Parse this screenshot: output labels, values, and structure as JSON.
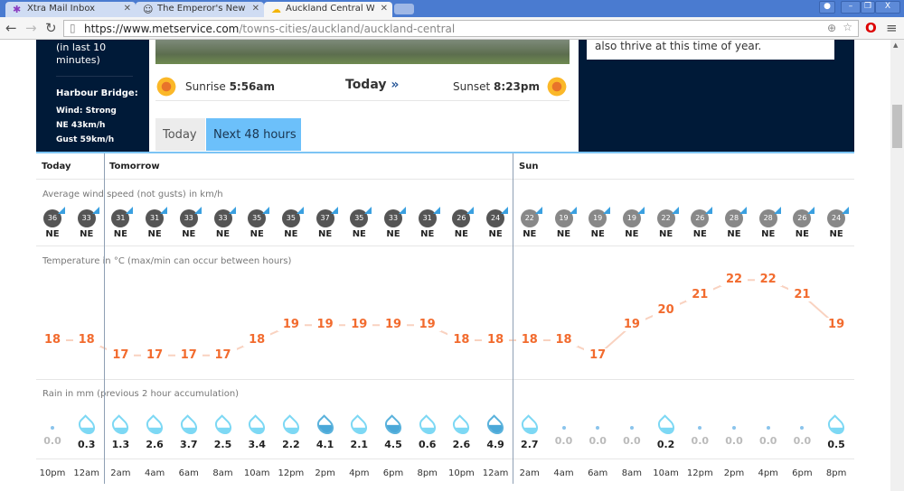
{
  "browser": {
    "tabs": [
      {
        "title": "Xtra Mail Inbox",
        "icon": "asterisk-icon"
      },
      {
        "title": "The Emperor's New Clo",
        "icon": "emoji-icon"
      },
      {
        "title": "Auckland Central Weath",
        "icon": "cloud-sun-icon",
        "active": true
      }
    ],
    "url_host": "https://www.metservice.com",
    "url_path": "/towns-cities/auckland/auckland-central"
  },
  "left_panel": {
    "note": "(in last 10 minutes)",
    "title": "Harbour Bridge:",
    "lines": [
      "Wind: Strong",
      "NE 43km/h",
      "Gust 59km/h"
    ]
  },
  "right_panel": {
    "text": "also thrive at this time of year."
  },
  "sun": {
    "sunrise_label": "Sunrise",
    "sunrise": "5:56am",
    "today": "Today",
    "sunset_label": "Sunset",
    "sunset": "8:23pm"
  },
  "view_tabs": [
    {
      "label": "Today"
    },
    {
      "label": "Next 48 hours",
      "active": true
    }
  ],
  "days": [
    "Today",
    "Tomorrow",
    "Sun"
  ],
  "wind_label": "Average wind speed (not gusts) in km/h",
  "temp_label": "Temperature in °C (max/min can occur between hours)",
  "rain_label": "Rain in mm (previous 2 hour accumulation)",
  "colors": {
    "temp": "#f26b2e",
    "accent": "#7cc4f4",
    "panel": "#001a38"
  },
  "times": [
    "10pm",
    "12am",
    "2am",
    "4am",
    "6am",
    "8am",
    "10am",
    "12pm",
    "2pm",
    "4pm",
    "6pm",
    "8pm",
    "10pm",
    "12am",
    "2am",
    "4am",
    "6am",
    "8am",
    "10am",
    "12pm",
    "2pm",
    "4pm",
    "6pm",
    "8pm"
  ],
  "wind_speeds": [
    36,
    33,
    31,
    31,
    33,
    33,
    35,
    35,
    37,
    35,
    33,
    31,
    26,
    24,
    22,
    19,
    19,
    19,
    22,
    26,
    28,
    28,
    26,
    24
  ],
  "wind_dirs": [
    "NE",
    "NE",
    "NE",
    "NE",
    "NE",
    "NE",
    "NE",
    "NE",
    "NE",
    "NE",
    "NE",
    "NE",
    "NE",
    "NE",
    "NE",
    "NE",
    "NE",
    "NE",
    "NE",
    "NE",
    "NE",
    "NE",
    "NE",
    "NE"
  ],
  "temps": [
    18,
    18,
    17,
    17,
    17,
    17,
    18,
    19,
    19,
    19,
    19,
    19,
    18,
    18,
    18,
    18,
    17,
    19,
    20,
    21,
    22,
    22,
    21,
    19
  ],
  "rain": [
    "0.0",
    "0.3",
    "1.3",
    "2.6",
    "3.7",
    "2.5",
    "3.4",
    "2.2",
    "4.1",
    "2.1",
    "4.5",
    "0.6",
    "2.6",
    "4.9",
    "2.7",
    "0.0",
    "0.0",
    "0.0",
    "0.2",
    "0.0",
    "0.0",
    "0.0",
    "0.0",
    "0.5"
  ]
}
